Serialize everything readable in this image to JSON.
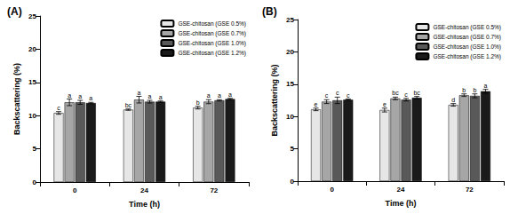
{
  "chart_data": [
    {
      "type": "bar",
      "title": "(A)",
      "x_label": "Time (h)",
      "y_label": "Backscattering (%)",
      "categories": [
        "0",
        "24",
        "72"
      ],
      "series": [
        {
          "name": "GSE-chitosan (GSE 0.5%)",
          "color": "#e6e6e6",
          "values": [
            10.4,
            10.9,
            11.2
          ],
          "errors": [
            0.2,
            0.1,
            0.2
          ],
          "letters": [
            "c",
            "bc",
            "b"
          ]
        },
        {
          "name": "GSE-chitosan (GSE 0.7%)",
          "color": "#a6a6a6",
          "values": [
            12.0,
            12.4,
            12.1
          ],
          "errors": [
            0.5,
            0.5,
            0.3
          ],
          "letters": [
            "a",
            "a",
            "a"
          ]
        },
        {
          "name": "GSE-chitosan (GSE 1.0%)",
          "color": "#595959",
          "values": [
            12.0,
            12.1,
            12.3
          ],
          "errors": [
            0.3,
            0.2,
            0.1
          ],
          "letters": [
            "a",
            "a",
            "a"
          ]
        },
        {
          "name": "GSE-chitosan (GSE 1.2%)",
          "color": "#1a1a1a",
          "values": [
            11.9,
            12.1,
            12.5
          ],
          "errors": [
            0.1,
            0.1,
            0.1
          ],
          "letters": [
            "a",
            "a",
            "a"
          ]
        }
      ],
      "ylim": [
        0,
        25
      ],
      "yticks": [
        0,
        5,
        10,
        15,
        20,
        25
      ],
      "grid": false,
      "legend": "upper right"
    },
    {
      "type": "bar",
      "title": "(B)",
      "x_label": "Time (h)",
      "y_label": "Backscattering (%)",
      "categories": [
        "0",
        "24",
        "72"
      ],
      "series": [
        {
          "name": "GSE-chitosan (GSE 0.5%)",
          "color": "#e6e6e6",
          "values": [
            11.1,
            11.0,
            11.8
          ],
          "errors": [
            0.2,
            0.3,
            0.2
          ],
          "letters": [
            "e",
            "e",
            "d"
          ]
        },
        {
          "name": "GSE-chitosan (GSE 0.7%)",
          "color": "#a6a6a6",
          "values": [
            12.3,
            12.8,
            13.3
          ],
          "errors": [
            0.3,
            0.2,
            0.2
          ],
          "letters": [
            "c",
            "bc",
            "b"
          ]
        },
        {
          "name": "GSE-chitosan (GSE 1.0%)",
          "color": "#595959",
          "values": [
            12.5,
            12.6,
            13.2
          ],
          "errors": [
            0.5,
            0.2,
            0.3
          ],
          "letters": [
            "c",
            "c",
            "b"
          ]
        },
        {
          "name": "GSE-chitosan (GSE 1.2%)",
          "color": "#1a1a1a",
          "values": [
            12.6,
            12.9,
            13.9
          ],
          "errors": [
            0.1,
            0.2,
            0.3
          ],
          "letters": [
            "c",
            "bc",
            "a"
          ]
        }
      ],
      "ylim": [
        0,
        25
      ],
      "yticks": [
        0,
        5,
        10,
        15,
        20,
        25
      ],
      "grid": false,
      "legend": "upper right"
    }
  ]
}
